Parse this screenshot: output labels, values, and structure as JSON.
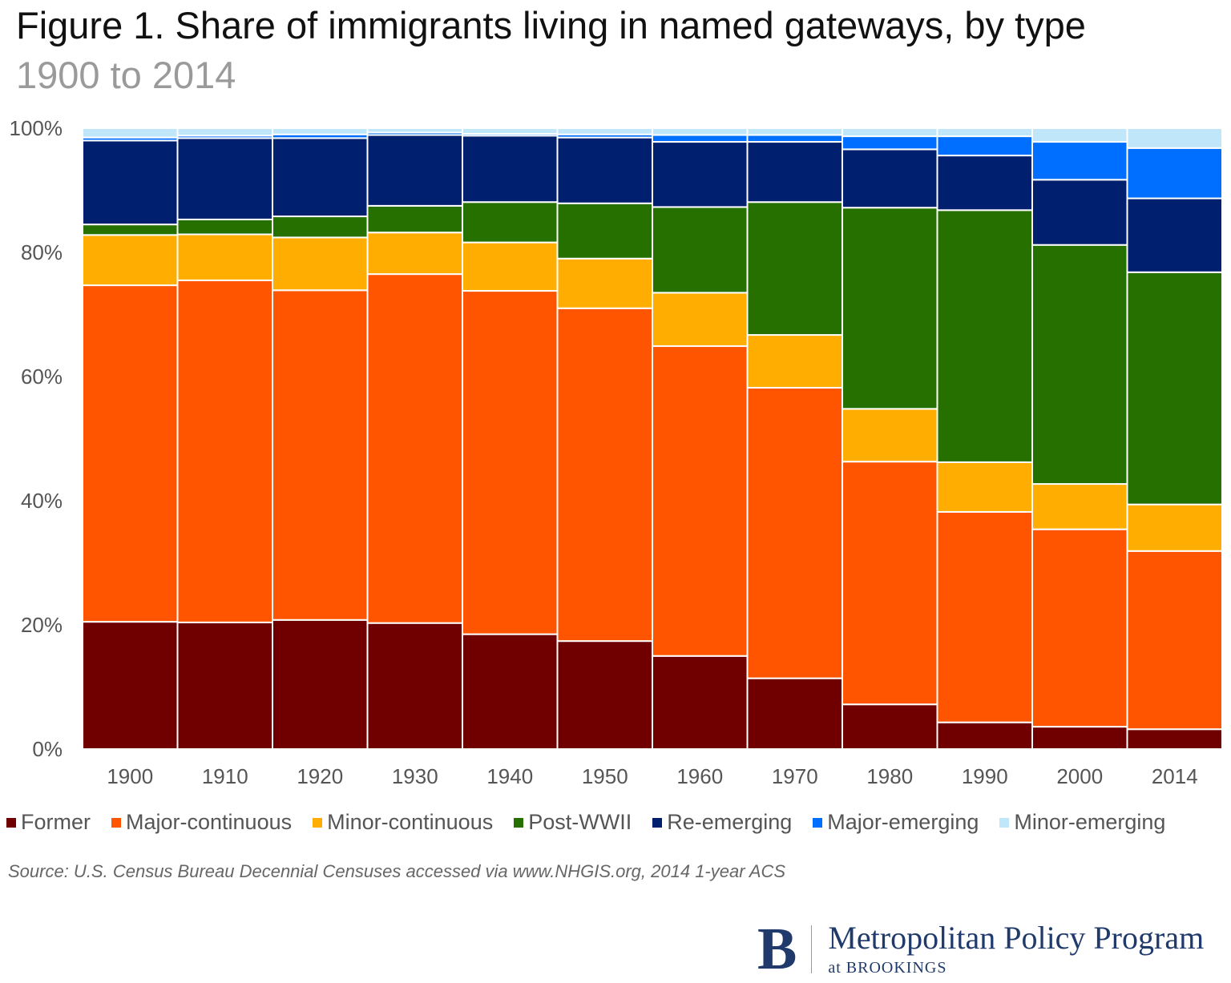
{
  "chart_data": {
    "type": "bar",
    "stacked": true,
    "title": "Figure 1. Share of immigrants living in named gateways, by type",
    "subtitle": "1900 to 2014",
    "xlabel": "",
    "ylabel": "",
    "ylim": [
      0,
      100
    ],
    "yticks": [
      "0%",
      "20%",
      "40%",
      "60%",
      "80%",
      "100%"
    ],
    "grid": false,
    "legend_position": "bottom",
    "categories": [
      "1900",
      "1910",
      "1920",
      "1930",
      "1940",
      "1950",
      "1960",
      "1970",
      "1980",
      "1990",
      "2000",
      "2014"
    ],
    "series": [
      {
        "name": "Former",
        "color": "#700000",
        "values": [
          20.5,
          20.4,
          20.8,
          20.3,
          18.5,
          17.4,
          15.0,
          11.4,
          7.2,
          4.3,
          3.6,
          3.2
        ]
      },
      {
        "name": "Major-continuous",
        "color": "#ff5500",
        "values": [
          54.2,
          55.1,
          53.1,
          56.2,
          55.3,
          53.6,
          49.9,
          46.8,
          39.1,
          33.9,
          31.8,
          28.7
        ]
      },
      {
        "name": "Minor-continuous",
        "color": "#ffad00",
        "values": [
          8.1,
          7.4,
          8.5,
          6.7,
          7.8,
          8.0,
          8.6,
          8.5,
          8.5,
          8.0,
          7.3,
          7.5
        ]
      },
      {
        "name": "Post-WWII",
        "color": "#267000",
        "values": [
          1.7,
          2.4,
          3.4,
          4.3,
          6.5,
          8.9,
          13.8,
          21.4,
          32.4,
          40.6,
          38.5,
          37.4
        ]
      },
      {
        "name": "Re-emerging",
        "color": "#001f6e",
        "values": [
          13.5,
          13.1,
          12.6,
          11.4,
          10.7,
          10.6,
          10.5,
          9.7,
          9.4,
          8.8,
          10.5,
          11.9
        ]
      },
      {
        "name": "Major-emerging",
        "color": "#006eff",
        "values": [
          0.5,
          0.4,
          0.6,
          0.4,
          0.3,
          0.5,
          1.1,
          1.1,
          2.1,
          3.1,
          6.1,
          8.1
        ]
      },
      {
        "name": "Minor-emerging",
        "color": "#c0e6fa",
        "values": [
          1.5,
          1.2,
          1.0,
          0.7,
          0.9,
          1.0,
          1.1,
          1.1,
          1.3,
          1.3,
          2.2,
          3.2
        ]
      }
    ]
  },
  "source": "Source: U.S. Census Bureau Decennial Censuses accessed via www.NHGIS.org, 2014 1-year ACS",
  "logo": {
    "letter": "B",
    "name": "Metropolitan Policy Program",
    "sub": "at BROOKINGS"
  }
}
